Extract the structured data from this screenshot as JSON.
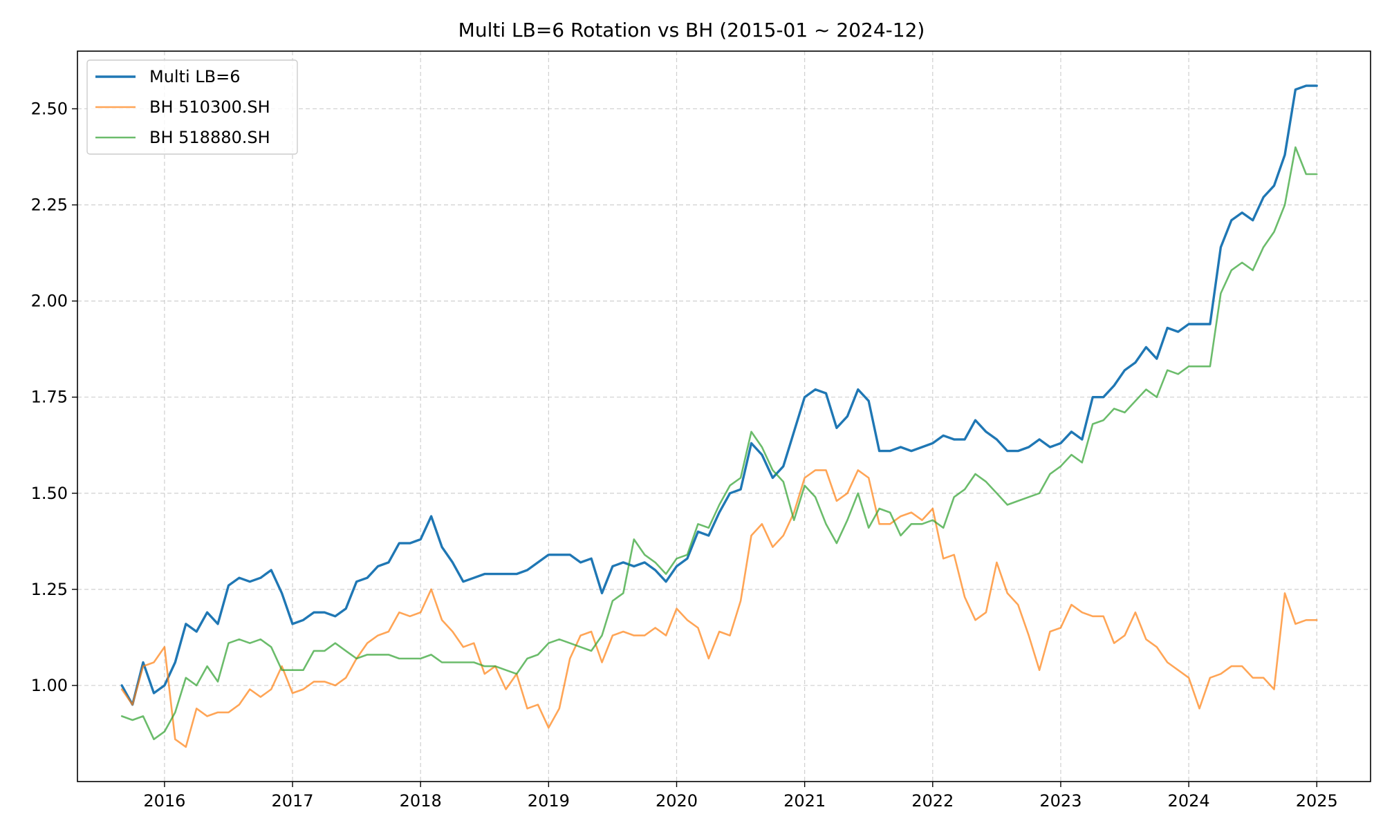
{
  "chart_data": {
    "type": "line",
    "title": "Multi LB=6 Rotation vs BH (2015-01 ~ 2024-12)",
    "xlabel": "",
    "ylabel": "",
    "x_tick_labels": [
      "2016",
      "2017",
      "2018",
      "2019",
      "2020",
      "2021",
      "2022",
      "2023",
      "2024",
      "2025"
    ],
    "x_tick_values": [
      2016,
      2017,
      2018,
      2019,
      2020,
      2021,
      2022,
      2023,
      2024,
      2025
    ],
    "y_tick_labels": [
      "1.00",
      "1.25",
      "1.50",
      "1.75",
      "2.00",
      "2.25",
      "2.50"
    ],
    "y_tick_values": [
      1.0,
      1.25,
      1.5,
      1.75,
      2.0,
      2.25,
      2.5
    ],
    "xlim": [
      2015.32,
      2025.42
    ],
    "ylim": [
      0.75,
      2.65
    ],
    "grid": true,
    "legend_position": "top-left",
    "x_start_year": 2015,
    "x_start_month": 9,
    "series": [
      {
        "name": "Multi LB=6",
        "color": "#1f77b4",
        "width": 3.4,
        "opacity": 1,
        "values": [
          1.0,
          0.95,
          1.06,
          0.98,
          1.0,
          1.06,
          1.16,
          1.14,
          1.19,
          1.16,
          1.26,
          1.28,
          1.27,
          1.28,
          1.3,
          1.24,
          1.16,
          1.17,
          1.19,
          1.19,
          1.18,
          1.2,
          1.27,
          1.28,
          1.31,
          1.32,
          1.37,
          1.37,
          1.38,
          1.44,
          1.36,
          1.32,
          1.27,
          1.28,
          1.29,
          1.29,
          1.29,
          1.29,
          1.3,
          1.32,
          1.34,
          1.34,
          1.34,
          1.32,
          1.33,
          1.24,
          1.31,
          1.32,
          1.31,
          1.32,
          1.3,
          1.27,
          1.31,
          1.33,
          1.4,
          1.39,
          1.45,
          1.5,
          1.51,
          1.63,
          1.6,
          1.54,
          1.57,
          1.66,
          1.75,
          1.77,
          1.76,
          1.67,
          1.7,
          1.77,
          1.74,
          1.61,
          1.61,
          1.62,
          1.61,
          1.62,
          1.63,
          1.65,
          1.64,
          1.64,
          1.69,
          1.66,
          1.64,
          1.61,
          1.61,
          1.62,
          1.64,
          1.62,
          1.63,
          1.66,
          1.64,
          1.75,
          1.75,
          1.78,
          1.82,
          1.84,
          1.88,
          1.85,
          1.93,
          1.92,
          1.94,
          1.94,
          1.94,
          2.14,
          2.21,
          2.23,
          2.21,
          2.27,
          2.3,
          2.38,
          2.55,
          2.56,
          2.56
        ]
      },
      {
        "name": "BH 510300.SH",
        "color": "#ff7f0e",
        "width": 2.6,
        "opacity": 0.7,
        "values": [
          0.99,
          0.95,
          1.05,
          1.06,
          1.1,
          0.86,
          0.84,
          0.94,
          0.92,
          0.93,
          0.93,
          0.95,
          0.99,
          0.97,
          0.99,
          1.05,
          0.98,
          0.99,
          1.01,
          1.01,
          1.0,
          1.02,
          1.07,
          1.11,
          1.13,
          1.14,
          1.19,
          1.18,
          1.19,
          1.25,
          1.17,
          1.14,
          1.1,
          1.11,
          1.03,
          1.05,
          0.99,
          1.03,
          0.94,
          0.95,
          0.89,
          0.94,
          1.07,
          1.13,
          1.14,
          1.06,
          1.13,
          1.14,
          1.13,
          1.13,
          1.15,
          1.13,
          1.2,
          1.17,
          1.15,
          1.07,
          1.14,
          1.13,
          1.22,
          1.39,
          1.42,
          1.36,
          1.39,
          1.45,
          1.54,
          1.56,
          1.56,
          1.48,
          1.5,
          1.56,
          1.54,
          1.42,
          1.42,
          1.44,
          1.45,
          1.43,
          1.46,
          1.33,
          1.34,
          1.23,
          1.17,
          1.19,
          1.32,
          1.24,
          1.21,
          1.13,
          1.04,
          1.14,
          1.15,
          1.21,
          1.19,
          1.18,
          1.18,
          1.11,
          1.13,
          1.19,
          1.12,
          1.1,
          1.06,
          1.04,
          1.02,
          0.94,
          1.02,
          1.03,
          1.05,
          1.05,
          1.02,
          1.02,
          0.99,
          1.24,
          1.16,
          1.17,
          1.17
        ]
      },
      {
        "name": "BH 518880.SH",
        "color": "#2ca02c",
        "width": 2.6,
        "opacity": 0.7,
        "values": [
          0.92,
          0.91,
          0.92,
          0.86,
          0.88,
          0.93,
          1.02,
          1.0,
          1.05,
          1.01,
          1.11,
          1.12,
          1.11,
          1.12,
          1.1,
          1.04,
          1.04,
          1.04,
          1.09,
          1.09,
          1.11,
          1.09,
          1.07,
          1.08,
          1.08,
          1.08,
          1.07,
          1.07,
          1.07,
          1.08,
          1.06,
          1.06,
          1.06,
          1.06,
          1.05,
          1.05,
          1.04,
          1.03,
          1.07,
          1.08,
          1.11,
          1.12,
          1.11,
          1.1,
          1.09,
          1.13,
          1.22,
          1.24,
          1.38,
          1.34,
          1.32,
          1.29,
          1.33,
          1.34,
          1.42,
          1.41,
          1.47,
          1.52,
          1.54,
          1.66,
          1.62,
          1.56,
          1.53,
          1.43,
          1.52,
          1.49,
          1.42,
          1.37,
          1.43,
          1.5,
          1.41,
          1.46,
          1.45,
          1.39,
          1.42,
          1.42,
          1.43,
          1.41,
          1.49,
          1.51,
          1.55,
          1.53,
          1.5,
          1.47,
          1.48,
          1.49,
          1.5,
          1.55,
          1.57,
          1.6,
          1.58,
          1.68,
          1.69,
          1.72,
          1.71,
          1.74,
          1.77,
          1.75,
          1.82,
          1.81,
          1.83,
          1.83,
          1.83,
          2.02,
          2.08,
          2.1,
          2.08,
          2.14,
          2.18,
          2.25,
          2.4,
          2.33,
          2.33
        ]
      }
    ]
  }
}
